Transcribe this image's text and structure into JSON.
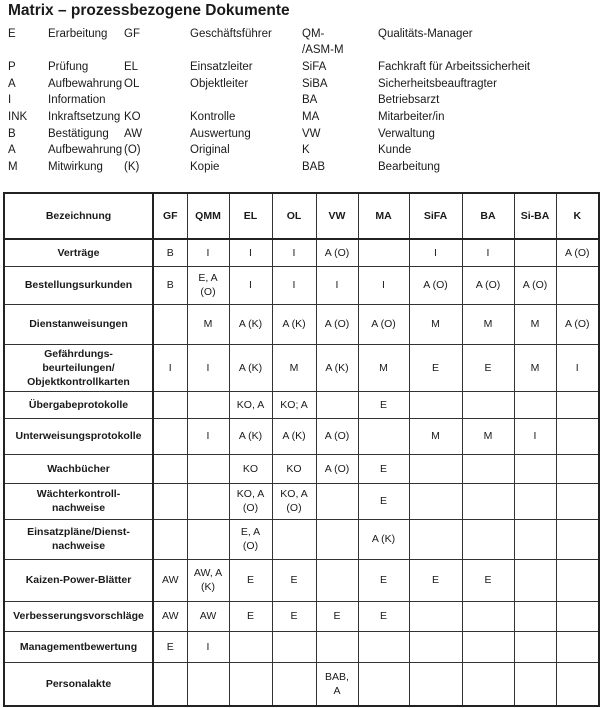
{
  "title": "Matrix – prozessbezogene Dokumente",
  "legend": [
    {
      "abbr": "E",
      "text": "Erarbeitung",
      "abbr2": "GF",
      "text2": "Geschäftsführer",
      "abbr3": "QM-\n/ASM-M",
      "text3": "Qualitäts-Manager"
    },
    {
      "abbr": "P",
      "text": "Prüfung",
      "abbr2": "EL",
      "text2": "Einsatzleiter",
      "abbr3": "SiFA",
      "text3": "Fachkraft für Arbeitssicherheit"
    },
    {
      "abbr": "A",
      "text": "Aufbewahrung",
      "abbr2": "OL",
      "text2": "Objektleiter",
      "abbr3": "SiBA",
      "text3": "Sicherheitsbeauftragter"
    },
    {
      "abbr": "I",
      "text": "Information",
      "abbr2": "",
      "text2": "",
      "abbr3": "BA",
      "text3": "Betriebsarzt"
    },
    {
      "abbr": "INK",
      "text": "Inkraftsetzung",
      "abbr2": "KO",
      "text2": "Kontrolle",
      "abbr3": "MA",
      "text3": "Mitarbeiter/in"
    },
    {
      "abbr": "B",
      "text": "Bestätigung",
      "abbr2": "AW",
      "text2": "Auswertung",
      "abbr3": "VW",
      "text3": "Verwaltung"
    },
    {
      "abbr": "A",
      "text": "Aufbewahrung",
      "abbr2": "(O)",
      "text2": "Original",
      "abbr3": "K",
      "text3": "Kunde"
    },
    {
      "abbr": "M",
      "text": "Mitwirkung",
      "abbr2": "(K)",
      "text2": "Kopie",
      "abbr3": "BAB",
      "text3": "Bearbeitung"
    }
  ],
  "table": {
    "headers": [
      "Bezeichnung",
      "GF",
      "QMM",
      "EL",
      "OL",
      "VW",
      "MA",
      "SiFA",
      "BA",
      "Si-BA",
      "K"
    ],
    "rows": [
      {
        "label": "Verträge",
        "cells": [
          "B",
          "I",
          "I",
          "I",
          "A (O)",
          "",
          "I",
          "I",
          "",
          "A (O)"
        ]
      },
      {
        "label": "Bestellungsurkunden",
        "cells": [
          "B",
          "E, A\n(O)",
          "I",
          "I",
          "I",
          "I",
          "A (O)",
          "A (O)",
          "A (O)",
          ""
        ]
      },
      {
        "label": "Dienstanweisungen",
        "cells": [
          "",
          "M",
          "A (K)",
          "A (K)",
          "A (O)",
          "A (O)",
          "M",
          "M",
          "M",
          "A (O)"
        ]
      },
      {
        "label": "Gefährdungs-\nbeurteilungen/\nObjektkontrollkarten",
        "cells": [
          "I",
          "I",
          "A (K)",
          "M",
          "A (K)",
          "M",
          "E",
          "E",
          "M",
          "I"
        ]
      },
      {
        "label": "Übergabeprotokolle",
        "cells": [
          "",
          "",
          "KO, A",
          "KO; A",
          "",
          "E",
          "",
          "",
          "",
          ""
        ]
      },
      {
        "label": "Unterweisungsprotokolle",
        "cells": [
          "",
          "I",
          "A (K)",
          "A (K)",
          "A (O)",
          "",
          "M",
          "M",
          "I",
          ""
        ]
      },
      {
        "label": "Wachbücher",
        "cells": [
          "",
          "",
          "KO",
          "KO",
          "A (O)",
          "E",
          "",
          "",
          "",
          ""
        ]
      },
      {
        "label": "Wächterkontroll-\nnachweise",
        "cells": [
          "",
          "",
          "KO, A\n(O)",
          "KO, A\n(O)",
          "",
          "E",
          "",
          "",
          "",
          ""
        ]
      },
      {
        "label": "Einsatzpläne/Dienst-\nnachweise",
        "cells": [
          "",
          "",
          "E, A\n(O)",
          "",
          "",
          "A (K)",
          "",
          "",
          "",
          ""
        ]
      },
      {
        "label": "Kaizen-Power-Blätter",
        "cells": [
          "AW",
          "AW, A\n(K)",
          "E",
          "E",
          "",
          "E",
          "E",
          "E",
          "",
          ""
        ]
      },
      {
        "label": "Verbesserungsvorschläge",
        "cells": [
          "AW",
          "AW",
          "E",
          "E",
          "E",
          "E",
          "",
          "",
          "",
          ""
        ]
      },
      {
        "label": "Managementbewertung",
        "cells": [
          "E",
          "I",
          "",
          "",
          "",
          "",
          "",
          "",
          "",
          ""
        ]
      },
      {
        "label": "Personalakte",
        "cells": [
          "",
          "",
          "",
          "",
          "BAB,\nA",
          "",
          "",
          "",
          "",
          ""
        ]
      }
    ]
  }
}
